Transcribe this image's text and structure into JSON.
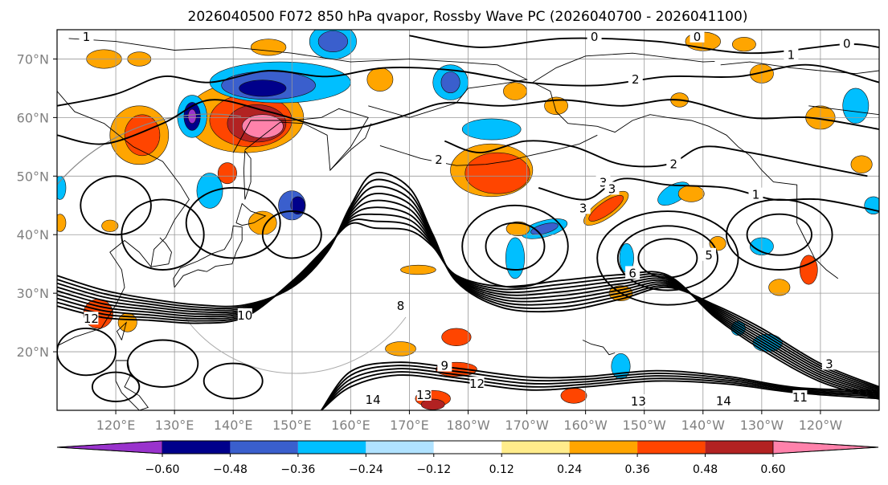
{
  "title": "2026040500 F072 850 hPa qvapor, Rossby Wave PC (2026040700 - 2026041100)",
  "map": {
    "lon_range": [
      110,
      250
    ],
    "lat_range": [
      10,
      75
    ],
    "lat_ticks": [
      {
        "value": 20,
        "label": "20°N"
      },
      {
        "value": 30,
        "label": "30°N"
      },
      {
        "value": 40,
        "label": "40°N"
      },
      {
        "value": 50,
        "label": "50°N"
      },
      {
        "value": 60,
        "label": "60°N"
      },
      {
        "value": 70,
        "label": "70°N"
      }
    ],
    "lon_ticks": [
      {
        "value": 120,
        "label": "120°E"
      },
      {
        "value": 130,
        "label": "130°E"
      },
      {
        "value": 140,
        "label": "140°E"
      },
      {
        "value": 150,
        "label": "150°E"
      },
      {
        "value": 160,
        "label": "160°E"
      },
      {
        "value": 170,
        "label": "170°E"
      },
      {
        "value": 180,
        "label": "180°W"
      },
      {
        "value": 190,
        "label": "170°W"
      },
      {
        "value": 200,
        "label": "160°W"
      },
      {
        "value": 210,
        "label": "150°W"
      },
      {
        "value": 220,
        "label": "140°W"
      },
      {
        "value": 230,
        "label": "130°W"
      },
      {
        "value": 240,
        "label": "120°W"
      }
    ],
    "gridlines": true,
    "contour_labels": [
      {
        "text": "1",
        "lon": 115,
        "lat": 73.8
      },
      {
        "text": "0",
        "lon": 201.5,
        "lat": 73.8
      },
      {
        "text": "0",
        "lon": 219,
        "lat": 73.8
      },
      {
        "text": "0",
        "lon": 244.5,
        "lat": 72.6
      },
      {
        "text": "1",
        "lon": 235,
        "lat": 70.7
      },
      {
        "text": "2",
        "lon": 208.5,
        "lat": 66.5
      },
      {
        "text": "3",
        "lon": 203,
        "lat": 48.9
      },
      {
        "text": "3",
        "lon": 204.5,
        "lat": 47.8
      },
      {
        "text": "2",
        "lon": 175,
        "lat": 52.8
      },
      {
        "text": "2",
        "lon": 215,
        "lat": 52.0
      },
      {
        "text": "1",
        "lon": 229,
        "lat": 46.8
      },
      {
        "text": "3",
        "lon": 199.6,
        "lat": 44.5
      },
      {
        "text": "5",
        "lon": 221,
        "lat": 36.5
      },
      {
        "text": "6",
        "lon": 208,
        "lat": 33.4
      },
      {
        "text": "8",
        "lon": 168.5,
        "lat": 27.8
      },
      {
        "text": "10",
        "lon": 142,
        "lat": 26.2
      },
      {
        "text": "12",
        "lon": 115.8,
        "lat": 25.6
      },
      {
        "text": "9",
        "lon": 176,
        "lat": 17.6
      },
      {
        "text": "12",
        "lon": 181.5,
        "lat": 14.5
      },
      {
        "text": "14",
        "lon": 163.8,
        "lat": 11.8
      },
      {
        "text": "13",
        "lon": 172.5,
        "lat": 12.6
      },
      {
        "text": "13",
        "lon": 209,
        "lat": 11.5
      },
      {
        "text": "14",
        "lon": 223.5,
        "lat": 11.6
      },
      {
        "text": "11",
        "lon": 236.5,
        "lat": 12.2
      },
      {
        "text": "3",
        "lon": 241.5,
        "lat": 17.9
      }
    ]
  },
  "colorbar": {
    "tick_labels": [
      "−0.60",
      "−0.48",
      "−0.36",
      "−0.24",
      "−0.12",
      "0.12",
      "0.24",
      "0.36",
      "0.48",
      "0.60"
    ],
    "colors": [
      "#9933cc",
      "#00008b",
      "#3a5fcd",
      "#00bfff",
      "#b0e2ff",
      "#ffffff",
      "#ffec8b",
      "#ffa500",
      "#ff4500",
      "#b22222",
      "#ff82ab"
    ]
  }
}
